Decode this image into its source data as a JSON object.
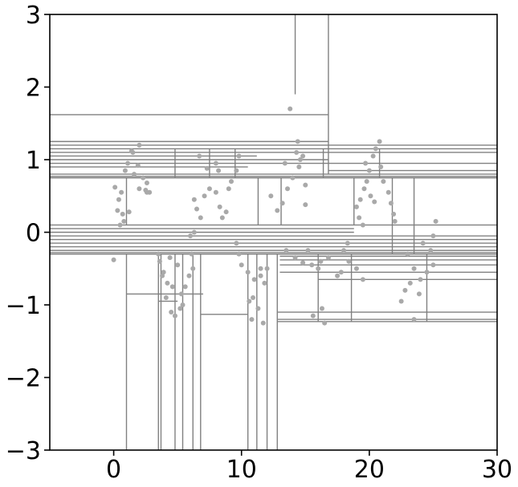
{
  "chart_data": {
    "type": "scatter",
    "title": "",
    "xlabel": "",
    "ylabel": "",
    "xlim": [
      -5,
      30
    ],
    "ylim": [
      -3,
      3
    ],
    "grid": false,
    "x_ticks": [
      0,
      10,
      20,
      30
    ],
    "x_tick_labels": [
      "0",
      "10",
      "20",
      "30"
    ],
    "y_ticks": [
      3,
      2,
      1,
      0,
      -1,
      -2,
      -3
    ],
    "y_tick_labels": [
      "3",
      "2",
      "1",
      "0",
      "−1",
      "−2",
      "−3"
    ],
    "colors": {
      "points": "#a9a9a9",
      "partition_lines": "#808080",
      "axes": "#000000"
    },
    "horizontal_partitions": [
      {
        "y": 1.62,
        "x": [
          -5,
          16.8
        ]
      },
      {
        "y": 1.25,
        "x": [
          -5,
          16.8
        ]
      },
      {
        "y": 1.2,
        "x": [
          -5,
          16.8
        ]
      },
      {
        "y": 1.15,
        "x": [
          -5,
          16.8
        ]
      },
      {
        "y": 1.2,
        "x": [
          16.8,
          30
        ]
      },
      {
        "y": 1.15,
        "x": [
          16.8,
          30
        ]
      },
      {
        "y": 1.1,
        "x": [
          -5,
          30
        ]
      },
      {
        "y": 1.05,
        "x": [
          -5,
          11.2
        ]
      },
      {
        "y": 1.0,
        "x": [
          -5,
          16.8
        ]
      },
      {
        "y": 0.95,
        "x": [
          -5,
          30
        ]
      },
      {
        "y": 0.9,
        "x": [
          -5,
          10.5
        ]
      },
      {
        "y": 0.85,
        "x": [
          16.8,
          30
        ]
      },
      {
        "y": 0.8,
        "x": [
          -5,
          30
        ]
      },
      {
        "y": 0.77,
        "x": [
          -5,
          30
        ]
      },
      {
        "y": 0.75,
        "x": [
          -5,
          30
        ]
      },
      {
        "y": 0.1,
        "x": [
          -5,
          30
        ]
      },
      {
        "y": 0.05,
        "x": [
          -5,
          18.8
        ]
      },
      {
        "y": 0.0,
        "x": [
          -5,
          18.8
        ]
      },
      {
        "y": -0.05,
        "x": [
          -5,
          30
        ]
      },
      {
        "y": -0.1,
        "x": [
          -5,
          30
        ]
      },
      {
        "y": -0.15,
        "x": [
          -5,
          30
        ]
      },
      {
        "y": -0.2,
        "x": [
          -5,
          30
        ]
      },
      {
        "y": -0.25,
        "x": [
          -5,
          30
        ]
      },
      {
        "y": -0.28,
        "x": [
          -5,
          30
        ]
      },
      {
        "y": -0.3,
        "x": [
          -5,
          30
        ]
      },
      {
        "y": -0.33,
        "x": [
          13,
          30
        ]
      },
      {
        "y": -0.38,
        "x": [
          13,
          30
        ]
      },
      {
        "y": -0.45,
        "x": [
          13,
          30
        ]
      },
      {
        "y": -0.55,
        "x": [
          13,
          30
        ]
      },
      {
        "y": -0.65,
        "x": [
          16,
          30
        ]
      },
      {
        "y": -0.85,
        "x": [
          1,
          7
        ]
      },
      {
        "y": -0.95,
        "x": [
          3.5,
          5
        ]
      },
      {
        "y": -1.1,
        "x": [
          12.8,
          30
        ]
      },
      {
        "y": -1.2,
        "x": [
          12.8,
          30
        ]
      },
      {
        "y": -1.23,
        "x": [
          12.8,
          30
        ]
      },
      {
        "y": -1.13,
        "x": [
          6.8,
          10.5
        ]
      }
    ],
    "vertical_partitions": [
      {
        "x": 14.2,
        "y": [
          1.9,
          3
        ]
      },
      {
        "x": 16.8,
        "y": [
          0.8,
          3
        ]
      },
      {
        "x": 1.0,
        "y": [
          -3,
          -0.3
        ]
      },
      {
        "x": 3.5,
        "y": [
          -3,
          -0.3
        ]
      },
      {
        "x": 3.7,
        "y": [
          -3,
          -0.3
        ]
      },
      {
        "x": 4.8,
        "y": [
          -3,
          -0.3
        ]
      },
      {
        "x": 5.4,
        "y": [
          -3,
          -0.3
        ]
      },
      {
        "x": 6.2,
        "y": [
          -3,
          -0.3
        ]
      },
      {
        "x": 6.8,
        "y": [
          -3,
          -0.3
        ]
      },
      {
        "x": 10.5,
        "y": [
          -3,
          -0.3
        ]
      },
      {
        "x": 11.2,
        "y": [
          -3,
          -0.3
        ]
      },
      {
        "x": 12.0,
        "y": [
          -3,
          -0.3
        ]
      },
      {
        "x": 12.8,
        "y": [
          -3,
          -0.3
        ]
      },
      {
        "x": 1.0,
        "y": [
          0.1,
          0.75
        ]
      },
      {
        "x": 11.3,
        "y": [
          0.1,
          0.75
        ]
      },
      {
        "x": 13.1,
        "y": [
          0.1,
          0.75
        ]
      },
      {
        "x": 18.8,
        "y": [
          0.1,
          0.75
        ]
      },
      {
        "x": 21.8,
        "y": [
          -0.3,
          0.75
        ]
      },
      {
        "x": 23.5,
        "y": [
          -0.3,
          0.75
        ]
      },
      {
        "x": 4.8,
        "y": [
          0.75,
          1.15
        ]
      },
      {
        "x": 7.5,
        "y": [
          0.75,
          1.15
        ]
      },
      {
        "x": 9.5,
        "y": [
          0.75,
          1.15
        ]
      },
      {
        "x": 16.4,
        "y": [
          0.75,
          1.15
        ]
      },
      {
        "x": 20.8,
        "y": [
          0.75,
          1.15
        ]
      },
      {
        "x": 18.6,
        "y": [
          -1.23,
          -0.3
        ]
      },
      {
        "x": 16.0,
        "y": [
          -1.23,
          -0.3
        ]
      },
      {
        "x": 24.5,
        "y": [
          -1.23,
          -0.3
        ]
      }
    ],
    "points": [
      [
        0.1,
        0.62
      ],
      [
        0.4,
        0.45
      ],
      [
        0.6,
        0.55
      ],
      [
        0.3,
        0.3
      ],
      [
        0.7,
        0.25
      ],
      [
        0.5,
        0.1
      ],
      [
        0.9,
        0.85
      ],
      [
        1.1,
        0.95
      ],
      [
        1.5,
        1.1
      ],
      [
        1.9,
        0.92
      ],
      [
        2.3,
        0.75
      ],
      [
        2.0,
        0.6
      ],
      [
        2.5,
        0.58
      ],
      [
        2.6,
        0.68
      ],
      [
        1.6,
        0.8
      ],
      [
        1.2,
        0.28
      ],
      [
        0.8,
        0.15
      ],
      [
        0.0,
        -0.38
      ],
      [
        2.0,
        1.2
      ],
      [
        1.4,
        1.12
      ],
      [
        2.6,
        0.55
      ],
      [
        2.8,
        0.55
      ],
      [
        6.3,
        0.45
      ],
      [
        6.5,
        0.32
      ],
      [
        6.8,
        0.2
      ],
      [
        6.3,
        0.0
      ],
      [
        7.1,
        0.5
      ],
      [
        7.5,
        0.6
      ],
      [
        8.0,
        0.55
      ],
      [
        8.3,
        0.35
      ],
      [
        8.5,
        0.2
      ],
      [
        8.8,
        0.28
      ],
      [
        9.2,
        0.7
      ],
      [
        9.0,
        0.6
      ],
      [
        7.3,
        0.88
      ],
      [
        8.2,
        0.85
      ],
      [
        8.0,
        0.95
      ],
      [
        6.7,
        1.05
      ],
      [
        9.8,
        1.05
      ],
      [
        9.6,
        0.85
      ],
      [
        6.0,
        -0.05
      ],
      [
        12.3,
        0.5
      ],
      [
        12.8,
        0.3
      ],
      [
        13.2,
        0.4
      ],
      [
        13.6,
        0.6
      ],
      [
        13.4,
        0.95
      ],
      [
        14.0,
        0.75
      ],
      [
        14.5,
        0.9
      ],
      [
        14.6,
        1.0
      ],
      [
        15.0,
        0.65
      ],
      [
        15.0,
        0.38
      ],
      [
        14.3,
        1.1
      ],
      [
        14.4,
        1.25
      ],
      [
        13.8,
        1.7
      ],
      [
        14.8,
        1.05
      ],
      [
        19.0,
        0.35
      ],
      [
        19.3,
        0.45
      ],
      [
        19.6,
        0.6
      ],
      [
        19.8,
        0.7
      ],
      [
        20.1,
        0.5
      ],
      [
        20.4,
        0.42
      ],
      [
        20.0,
        0.85
      ],
      [
        19.7,
        0.95
      ],
      [
        20.3,
        1.05
      ],
      [
        20.5,
        1.15
      ],
      [
        20.9,
        0.9
      ],
      [
        21.1,
        0.7
      ],
      [
        21.5,
        0.55
      ],
      [
        21.7,
        0.4
      ],
      [
        21.9,
        0.25
      ],
      [
        22.0,
        0.15
      ],
      [
        19.2,
        0.2
      ],
      [
        19.5,
        0.1
      ],
      [
        20.8,
        1.25
      ],
      [
        18.0,
        -0.25
      ],
      [
        18.4,
        -0.4
      ],
      [
        19.0,
        -0.5
      ],
      [
        19.5,
        -0.65
      ],
      [
        17.5,
        -0.6
      ],
      [
        17.8,
        -0.55
      ],
      [
        16.2,
        -0.4
      ],
      [
        16.8,
        -0.35
      ],
      [
        18.3,
        -0.15
      ],
      [
        23.0,
        -0.3
      ],
      [
        23.5,
        -0.5
      ],
      [
        24.0,
        -0.65
      ],
      [
        24.5,
        -0.55
      ],
      [
        25.0,
        -0.45
      ],
      [
        24.8,
        -0.25
      ],
      [
        24.2,
        -0.15
      ],
      [
        25.0,
        -0.05
      ],
      [
        25.2,
        0.15
      ],
      [
        23.2,
        -0.7
      ],
      [
        22.8,
        -0.8
      ],
      [
        23.9,
        -0.85
      ],
      [
        22.5,
        -0.95
      ],
      [
        23.5,
        -1.2
      ],
      [
        14.2,
        -0.35
      ],
      [
        14.8,
        -0.42
      ],
      [
        15.5,
        -0.45
      ],
      [
        16.0,
        -0.5
      ],
      [
        15.2,
        -0.25
      ],
      [
        13.5,
        -0.25
      ],
      [
        16.3,
        -1.05
      ],
      [
        16.5,
        -1.25
      ],
      [
        15.6,
        -1.15
      ],
      [
        9.8,
        -0.3
      ],
      [
        10.0,
        -0.45
      ],
      [
        9.6,
        -0.15
      ],
      [
        10.5,
        -0.55
      ],
      [
        11.0,
        -0.65
      ],
      [
        11.5,
        -0.6
      ],
      [
        11.8,
        -0.7
      ],
      [
        10.9,
        -0.9
      ],
      [
        11.3,
        -1.05
      ],
      [
        10.8,
        -1.2
      ],
      [
        11.7,
        -1.25
      ],
      [
        11.5,
        -0.5
      ],
      [
        12.0,
        -0.5
      ],
      [
        10.6,
        -0.95
      ],
      [
        3.6,
        -0.4
      ],
      [
        3.9,
        -0.55
      ],
      [
        4.2,
        -0.7
      ],
      [
        4.1,
        -0.9
      ],
      [
        4.5,
        -1.1
      ],
      [
        4.8,
        -1.15
      ],
      [
        5.3,
        -0.85
      ],
      [
        5.6,
        -0.75
      ],
      [
        5.9,
        -0.6
      ],
      [
        6.2,
        -0.5
      ],
      [
        4.4,
        -0.35
      ],
      [
        5.0,
        -0.45
      ],
      [
        5.2,
        -1.05
      ],
      [
        3.8,
        -0.6
      ],
      [
        4.6,
        -0.75
      ],
      [
        5.4,
        -1.0
      ],
      [
        3.5,
        -0.3
      ],
      [
        6.1,
        -0.3
      ]
    ]
  }
}
